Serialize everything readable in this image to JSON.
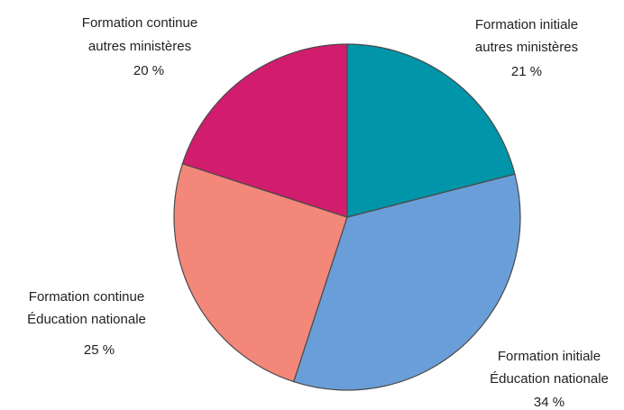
{
  "chart_data": {
    "type": "pie",
    "start_angle_deg": 0,
    "direction": "clockwise",
    "slices": [
      {
        "label_lines": [
          "Formation initiale",
          "autres ministères"
        ],
        "value": 21,
        "value_label": "21 %",
        "color": "#0095A8"
      },
      {
        "label_lines": [
          "Formation initiale",
          "Éducation nationale"
        ],
        "value": 34,
        "value_label": "34 %",
        "color": "#6A9ED8"
      },
      {
        "label_lines": [
          "Formation continue",
          "Éducation nationale"
        ],
        "value": 25,
        "value_label": "25 %",
        "color": "#F2877A"
      },
      {
        "label_lines": [
          "Formation continue",
          "autres ministères"
        ],
        "value": 20,
        "value_label": "20 %",
        "color": "#D21C6E"
      }
    ],
    "legend": "none",
    "grid": false
  }
}
